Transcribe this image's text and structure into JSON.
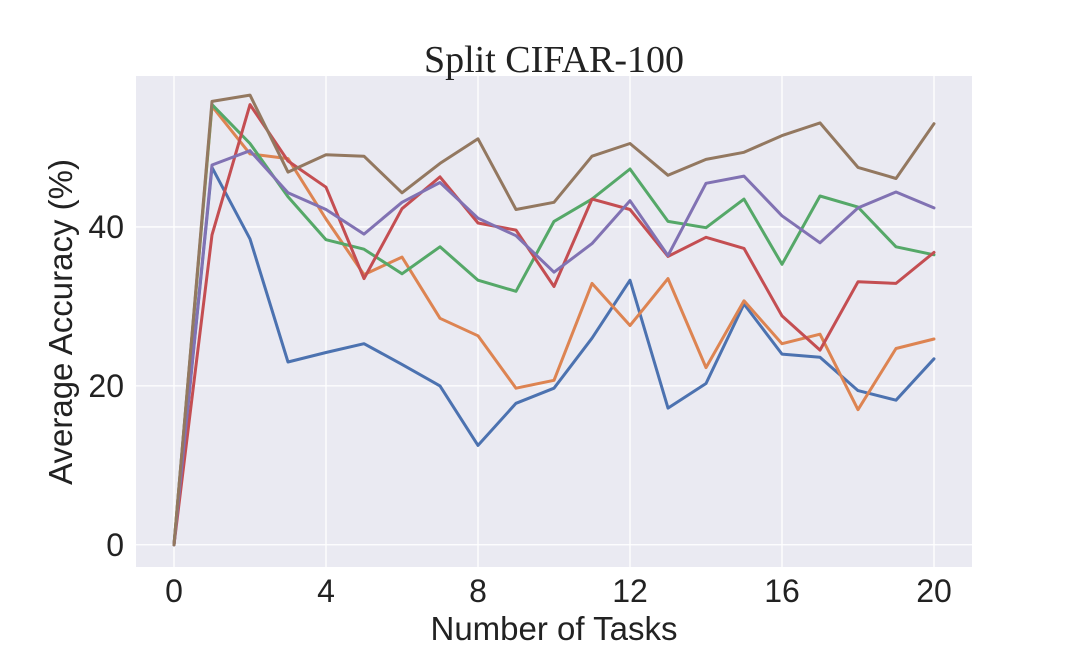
{
  "chart_data": {
    "type": "line",
    "title": "Split CIFAR-100",
    "xlabel": "Number of Tasks",
    "ylabel": "Average Accuracy (%)",
    "xlim": [
      -1,
      21
    ],
    "ylim": [
      -2.8,
      59
    ],
    "xticks": [
      0,
      4,
      8,
      12,
      16,
      20
    ],
    "yticks": [
      0,
      20,
      40
    ],
    "grid": true,
    "legend": "none",
    "x": [
      0,
      1,
      2,
      3,
      4,
      5,
      6,
      7,
      8,
      9,
      10,
      11,
      12,
      13,
      14,
      15,
      16,
      17,
      18,
      19,
      20
    ],
    "series": [
      {
        "color": "#4c72b0",
        "values": [
          0,
          47.5,
          38.5,
          23.0,
          24.2,
          25.3,
          22.7,
          20.0,
          12.5,
          17.8,
          19.7,
          26.0,
          33.3,
          17.2,
          20.3,
          30.3,
          24.0,
          23.6,
          19.4,
          18.2,
          23.4
        ]
      },
      {
        "color": "#dd8452",
        "values": [
          0,
          55.2,
          49.2,
          48.6,
          41.0,
          34.0,
          36.2,
          28.5,
          26.3,
          19.7,
          20.7,
          32.9,
          27.6,
          33.5,
          22.3,
          30.7,
          25.3,
          26.5,
          17.0,
          24.7,
          25.9
        ]
      },
      {
        "color": "#55a868",
        "values": [
          0,
          55.4,
          50.5,
          43.8,
          38.4,
          37.2,
          34.1,
          37.5,
          33.3,
          31.9,
          40.7,
          43.5,
          47.3,
          40.7,
          39.9,
          43.5,
          35.3,
          43.9,
          42.5,
          37.5,
          36.5
        ]
      },
      {
        "color": "#c44e52",
        "values": [
          0,
          39.0,
          55.4,
          48.3,
          45.0,
          33.5,
          42.3,
          46.3,
          40.5,
          39.6,
          32.5,
          43.5,
          42.2,
          36.3,
          38.7,
          37.3,
          28.8,
          24.5,
          33.1,
          32.9,
          36.8
        ]
      },
      {
        "color": "#8172b3",
        "values": [
          0,
          47.8,
          49.6,
          44.3,
          42.2,
          39.1,
          43.1,
          45.6,
          41.1,
          38.9,
          34.3,
          37.9,
          43.3,
          36.4,
          45.5,
          46.4,
          41.4,
          38.0,
          42.4,
          44.4,
          42.4
        ]
      },
      {
        "color": "#937860",
        "values": [
          0,
          55.8,
          56.6,
          46.9,
          49.1,
          48.9,
          44.3,
          48.0,
          51.1,
          42.2,
          43.1,
          48.9,
          50.5,
          46.5,
          48.5,
          49.4,
          51.5,
          53.1,
          47.5,
          46.1,
          53.0
        ]
      }
    ]
  },
  "colors": {
    "plot_background": "#eaeaf2",
    "grid": "#ffffff",
    "text": "#222222"
  }
}
